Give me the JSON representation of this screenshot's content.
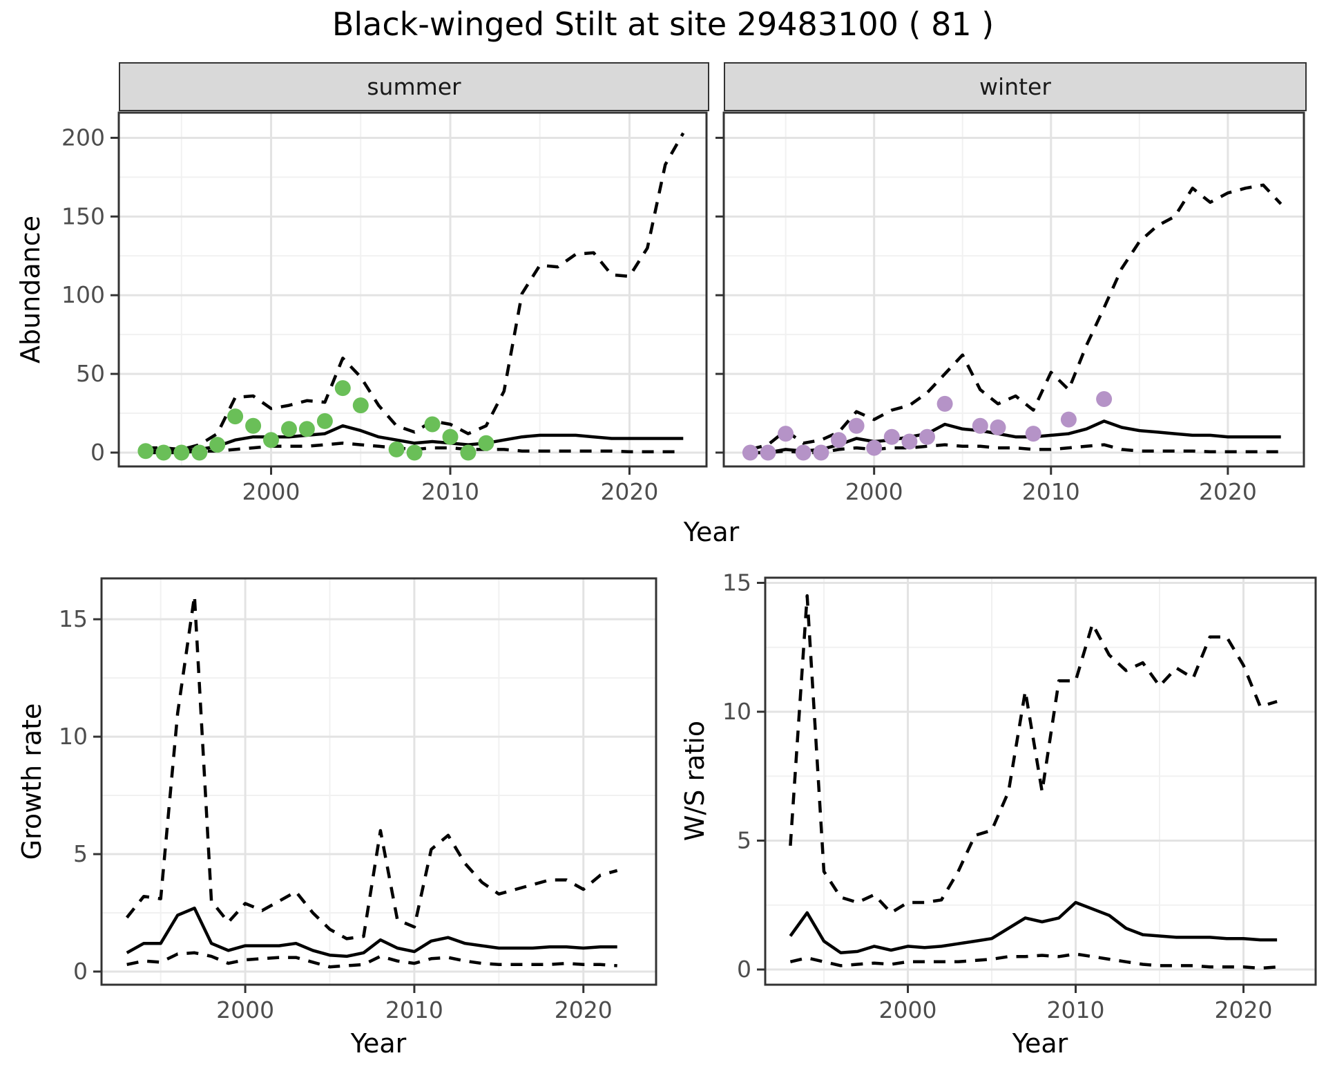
{
  "header": {
    "title": "Black-winged Stilt at site 29483100 ( 81 )"
  },
  "axis_labels": {
    "abundance": "Abundance",
    "year": "Year",
    "growth_rate": "Growth rate",
    "ws_ratio": "W/S ratio"
  },
  "colors": {
    "summer_point": "#6abf58",
    "winter_point": "#b593c7",
    "line": "#000000",
    "strip_bg": "#d9d9d9",
    "panel_border": "#333333",
    "grid_major": "#e3e3e3",
    "grid_minor": "#f1f1f1",
    "tick_label": "#4d4d4d"
  },
  "chart_data": [
    {
      "id": "abundance_summer",
      "type": "line",
      "facet": "summer",
      "xlabel": "Year",
      "ylabel": "Abundance",
      "xlim": [
        1991.5,
        2024.3
      ],
      "ylim": [
        -8.8,
        216
      ],
      "xticks": [
        2000,
        2010,
        2020
      ],
      "xminor": [
        1995,
        2005,
        2015
      ],
      "yticks": [
        0,
        50,
        100,
        150,
        200
      ],
      "yminor": [
        25,
        75,
        125,
        175
      ],
      "x": [
        1993,
        1994,
        1995,
        1996,
        1997,
        1998,
        1999,
        2000,
        2001,
        2002,
        2003,
        2004,
        2005,
        2006,
        2007,
        2008,
        2009,
        2010,
        2011,
        2012,
        2013,
        2014,
        2015,
        2016,
        2017,
        2018,
        2019,
        2020,
        2021,
        2022,
        2023
      ],
      "series": [
        {
          "name": "upper 95% CI",
          "style": "dashed",
          "values": [
            3,
            3,
            2,
            5,
            12,
            35,
            36,
            28,
            30,
            33,
            32,
            60,
            48,
            30,
            17,
            13,
            20,
            18,
            12,
            17,
            39,
            101,
            119,
            118,
            126,
            127,
            113,
            112,
            130,
            183,
            203
          ]
        },
        {
          "name": "median",
          "style": "solid",
          "values": [
            1,
            1,
            1,
            2,
            4,
            8,
            10,
            10,
            10,
            11,
            12,
            17,
            14,
            10,
            8,
            6,
            7,
            6,
            5,
            6,
            8,
            10,
            11,
            11,
            11,
            10,
            9,
            9,
            9,
            9,
            9
          ]
        },
        {
          "name": "lower 95% CI",
          "style": "dashed",
          "values": [
            0,
            0,
            0,
            1,
            1,
            2,
            3,
            4,
            4,
            4,
            5,
            6,
            5,
            4,
            3,
            2,
            3,
            3,
            2,
            2,
            2,
            1,
            1,
            1,
            1,
            1,
            1,
            0.5,
            0.5,
            0.5,
            0.5
          ]
        }
      ],
      "points": {
        "name": "observed counts (summer)",
        "color": "#6abf58",
        "x": [
          1993,
          1994,
          1995,
          1996,
          1997,
          1998,
          1999,
          2000,
          2001,
          2002,
          2003,
          2004,
          2005,
          2007,
          2008,
          2009,
          2010,
          2011,
          2012
        ],
        "y": [
          1,
          0,
          0,
          0,
          5,
          23,
          17,
          8,
          15,
          15,
          20,
          41,
          30,
          2,
          0,
          18,
          10,
          0,
          6
        ]
      }
    },
    {
      "id": "abundance_winter",
      "type": "line",
      "facet": "winter",
      "xlabel": "Year",
      "ylabel": "Abundance",
      "xlim": [
        1991.5,
        2024.3
      ],
      "ylim": [
        -8.8,
        216
      ],
      "xticks": [
        2000,
        2010,
        2020
      ],
      "xminor": [
        1995,
        2005,
        2015
      ],
      "yticks": [
        0,
        50,
        100,
        150,
        200
      ],
      "yminor": [
        25,
        75,
        125,
        175
      ],
      "x": [
        1993,
        1994,
        1995,
        1996,
        1997,
        1998,
        1999,
        2000,
        2001,
        2002,
        2003,
        2004,
        2005,
        2006,
        2007,
        2008,
        2009,
        2010,
        2011,
        2012,
        2013,
        2014,
        2015,
        2016,
        2017,
        2018,
        2019,
        2020,
        2021,
        2022,
        2023
      ],
      "series": [
        {
          "name": "upper 95% CI",
          "style": "dashed",
          "values": [
            2,
            5,
            14,
            6,
            8,
            13,
            26,
            21,
            27,
            30,
            38,
            50,
            62,
            40,
            31,
            36,
            27,
            51,
            40,
            68,
            92,
            117,
            134,
            144,
            150,
            168,
            159,
            165,
            168,
            170,
            158
          ]
        },
        {
          "name": "median",
          "style": "solid",
          "values": [
            0,
            0,
            2,
            1,
            2,
            5,
            9,
            7,
            8,
            10,
            12,
            18,
            15,
            14,
            12,
            10,
            10,
            11,
            12,
            15,
            20,
            16,
            14,
            13,
            12,
            11,
            11,
            10,
            10,
            10,
            10
          ]
        },
        {
          "name": "lower 95% CI",
          "style": "dashed",
          "values": [
            0,
            0,
            1,
            0,
            0,
            2,
            3,
            2,
            3,
            3,
            4,
            5,
            4,
            4,
            3,
            3,
            2,
            2,
            3,
            4,
            5,
            2,
            1,
            1,
            1,
            1,
            0.5,
            0.5,
            0.5,
            0.5,
            0.5
          ]
        }
      ],
      "points": {
        "name": "observed counts (winter)",
        "color": "#b593c7",
        "x": [
          1993,
          1994,
          1995,
          1996,
          1997,
          1998,
          1999,
          2000,
          2001,
          2002,
          2003,
          2004,
          2006,
          2007,
          2009,
          2011,
          2013
        ],
        "y": [
          0,
          0,
          12,
          0,
          0,
          8,
          17,
          3,
          10,
          7,
          10,
          31,
          17,
          16,
          12,
          21,
          34
        ]
      }
    },
    {
      "id": "growth_rate",
      "type": "line",
      "facet": null,
      "xlabel": "Year",
      "ylabel": "Growth rate",
      "xlim": [
        1991.5,
        2024.3
      ],
      "ylim": [
        -0.56,
        16.74
      ],
      "xticks": [
        2000,
        2010,
        2020
      ],
      "xminor": [
        1995,
        2005,
        2015
      ],
      "yticks": [
        0,
        5,
        10,
        15
      ],
      "yminor": [
        2.5,
        7.5,
        12.5
      ],
      "x": [
        1993,
        1994,
        1995,
        1996,
        1997,
        1998,
        1999,
        2000,
        2001,
        2002,
        2003,
        2004,
        2005,
        2006,
        2007,
        2008,
        2009,
        2010,
        2011,
        2012,
        2013,
        2014,
        2015,
        2016,
        2017,
        2018,
        2019,
        2020,
        2021,
        2022
      ],
      "series": [
        {
          "name": "upper 95% CI",
          "style": "dashed",
          "values": [
            2.3,
            3.2,
            3.1,
            11.0,
            16.0,
            3.0,
            2.1,
            2.9,
            2.6,
            3.0,
            3.4,
            2.5,
            1.8,
            1.4,
            1.5,
            6.0,
            2.2,
            1.9,
            5.2,
            5.8,
            4.6,
            3.8,
            3.3,
            3.5,
            3.7,
            3.9,
            3.9,
            3.5,
            4.1,
            4.3
          ]
        },
        {
          "name": "median",
          "style": "solid",
          "values": [
            0.8,
            1.2,
            1.2,
            2.4,
            2.7,
            1.2,
            0.9,
            1.1,
            1.1,
            1.1,
            1.2,
            0.9,
            0.7,
            0.65,
            0.8,
            1.35,
            1.0,
            0.85,
            1.3,
            1.45,
            1.2,
            1.1,
            1.0,
            1.0,
            1.0,
            1.05,
            1.05,
            1.0,
            1.05,
            1.05
          ]
        },
        {
          "name": "lower 95% CI",
          "style": "dashed",
          "values": [
            0.3,
            0.45,
            0.4,
            0.75,
            0.8,
            0.65,
            0.35,
            0.5,
            0.55,
            0.6,
            0.6,
            0.4,
            0.2,
            0.25,
            0.3,
            0.65,
            0.45,
            0.35,
            0.55,
            0.6,
            0.45,
            0.35,
            0.3,
            0.3,
            0.3,
            0.3,
            0.35,
            0.3,
            0.3,
            0.25
          ]
        }
      ],
      "points": null
    },
    {
      "id": "ws_ratio",
      "type": "line",
      "facet": null,
      "xlabel": "Year",
      "ylabel": "W/S ratio",
      "xlim": [
        1991.5,
        2024.3
      ],
      "ylim": [
        -0.59,
        15.2
      ],
      "xticks": [
        2000,
        2010,
        2020
      ],
      "xminor": [
        1995,
        2005,
        2015
      ],
      "yticks": [
        0,
        5,
        10,
        15
      ],
      "yminor": [
        2.5,
        7.5,
        12.5
      ],
      "x": [
        1993,
        1994,
        1995,
        1996,
        1997,
        1998,
        1999,
        2000,
        2001,
        2002,
        2003,
        2004,
        2005,
        2006,
        2007,
        2008,
        2009,
        2010,
        2011,
        2012,
        2013,
        2014,
        2015,
        2016,
        2017,
        2018,
        2019,
        2020,
        2021,
        2022
      ],
      "series": [
        {
          "name": "upper 95% CI",
          "style": "dashed",
          "values": [
            4.8,
            14.5,
            3.8,
            2.8,
            2.6,
            2.9,
            2.2,
            2.6,
            2.6,
            2.7,
            3.8,
            5.2,
            5.4,
            6.9,
            10.8,
            6.9,
            11.2,
            11.2,
            13.4,
            12.2,
            11.6,
            11.9,
            11.0,
            11.7,
            11.3,
            12.9,
            12.9,
            11.8,
            10.2,
            10.4
          ]
        },
        {
          "name": "median",
          "style": "solid",
          "values": [
            1.3,
            2.2,
            1.1,
            0.65,
            0.7,
            0.9,
            0.75,
            0.9,
            0.85,
            0.9,
            1.0,
            1.1,
            1.2,
            1.6,
            2.0,
            1.85,
            2.0,
            2.6,
            2.35,
            2.1,
            1.6,
            1.35,
            1.3,
            1.25,
            1.25,
            1.25,
            1.2,
            1.2,
            1.15,
            1.15
          ]
        },
        {
          "name": "lower 95% CI",
          "style": "dashed",
          "values": [
            0.3,
            0.45,
            0.3,
            0.15,
            0.2,
            0.25,
            0.2,
            0.3,
            0.3,
            0.3,
            0.3,
            0.35,
            0.4,
            0.5,
            0.5,
            0.55,
            0.5,
            0.6,
            0.5,
            0.4,
            0.3,
            0.2,
            0.15,
            0.15,
            0.15,
            0.1,
            0.1,
            0.1,
            0.05,
            0.1
          ]
        }
      ],
      "points": null
    }
  ]
}
